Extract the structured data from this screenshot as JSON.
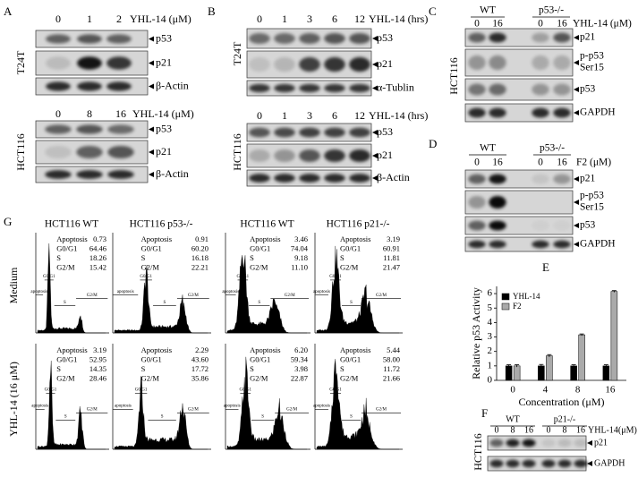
{
  "panel_a": {
    "label": "A",
    "blots": [
      {
        "cell_line": "T24T",
        "lanes": [
          "0",
          "1",
          "2"
        ],
        "treatment": "YHL-14 (μM)",
        "bands": [
          "p53",
          "p21",
          "β-Actin"
        ]
      },
      {
        "cell_line": "HCT116",
        "lanes": [
          "0",
          "8",
          "16"
        ],
        "treatment": "YHL-14 (μM)",
        "bands": [
          "p53",
          "p21",
          "β-Actin"
        ]
      }
    ]
  },
  "panel_b": {
    "label": "B",
    "blots": [
      {
        "cell_line": "T24T",
        "lanes": [
          "0",
          "1",
          "3",
          "6",
          "12"
        ],
        "treatment": "YHL-14 (hrs)",
        "bands": [
          "p53",
          "p21",
          "α-Tublin"
        ]
      },
      {
        "cell_line": "HCT116",
        "lanes": [
          "0",
          "1",
          "3",
          "6",
          "12"
        ],
        "treatment": "YHL-14 (hrs)",
        "bands": [
          "p53",
          "p21",
          "β-Actin"
        ]
      }
    ]
  },
  "panel_c": {
    "label": "C",
    "cell_line": "HCT116",
    "groups": [
      "WT",
      "p53-/-"
    ],
    "lanes": [
      "0",
      "16",
      "0",
      "16"
    ],
    "treatment": "YHL-14 (μM)",
    "bands": [
      "p21",
      [
        "p-p53",
        "Ser15"
      ],
      "p53",
      "GAPDH"
    ]
  },
  "panel_d": {
    "label": "D",
    "groups": [
      "WT",
      "p53-/-"
    ],
    "lanes": [
      "0",
      "16",
      "0",
      "16"
    ],
    "treatment": "F2 (μM)",
    "bands": [
      "p21",
      [
        "p-p53",
        "Ser15"
      ],
      "p53",
      "GAPDH"
    ]
  },
  "panel_g": {
    "label": "G",
    "columns": [
      "HCT116 WT",
      "HCT116 p53-/-",
      "HCT116 WT",
      "HCT116 p21-/-"
    ],
    "rows": [
      "Medium",
      "YHL-14 (16 μM)"
    ],
    "stat_names": [
      "Apoptosis",
      "G0/G1",
      "S",
      "G2/M"
    ],
    "gate_labels": [
      "apoptosis",
      "G0/G1",
      "S",
      "G2/M"
    ],
    "stats": [
      [
        [
          "0.73",
          "64.46",
          "18.26",
          "15.42"
        ],
        [
          "0.91",
          "60.20",
          "16.18",
          "22.21"
        ],
        [
          "3.46",
          "74.04",
          "9.18",
          "11.10"
        ],
        [
          "3.19",
          "60.91",
          "11.81",
          "21.47"
        ]
      ],
      [
        [
          "3.19",
          "52.95",
          "14.35",
          "28.46"
        ],
        [
          "2.29",
          "43.60",
          "17.72",
          "35.86"
        ],
        [
          "6.20",
          "59.34",
          "3.98",
          "22.87"
        ],
        [
          "5.44",
          "58.00",
          "11.72",
          "21.66"
        ]
      ]
    ]
  },
  "chart_data": {
    "type": "bar",
    "label": "E",
    "categories": [
      "0",
      "4",
      "8",
      "16"
    ],
    "series": [
      {
        "name": "YHL-14",
        "color": "#000000",
        "values": [
          1,
          1,
          1,
          1
        ],
        "errors": [
          0.08,
          0.1,
          0.08,
          0.08
        ]
      },
      {
        "name": "F2",
        "color": "#aaaaaa",
        "values": [
          1,
          1.7,
          3.15,
          6.15
        ],
        "errors": [
          0.08,
          0.08,
          0.06,
          0.06
        ]
      }
    ],
    "ylim": [
      0,
      6.5
    ],
    "yticks": [
      0,
      1,
      2,
      3,
      4,
      5,
      6
    ],
    "ylabel": "Relative p53 Activity",
    "xlabel": "Concentration (μM)",
    "legend": "upper left"
  },
  "panel_f": {
    "label": "F",
    "cell_line": "HCT116",
    "groups": [
      "WT",
      "p21-/-"
    ],
    "lanes": [
      "0",
      "8",
      "16",
      "0",
      "8",
      "16"
    ],
    "treatment": "YHL-14(μM)",
    "bands": [
      "p21",
      "GAPDH"
    ]
  }
}
